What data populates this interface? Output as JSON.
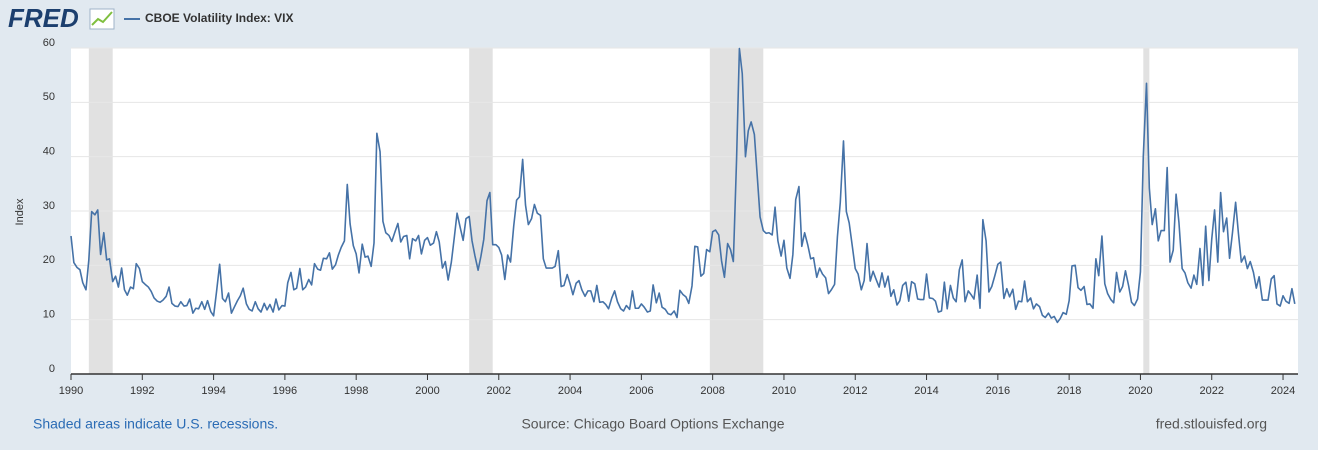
{
  "chart_data": {
    "type": "line",
    "logo": "FRED",
    "ylabel": "Index",
    "note": "Shaded areas indicate U.S. recessions.",
    "source": "Source: Chicago Board Options Exchange",
    "site": "fred.stlouisfed.org",
    "xlim": [
      1990,
      2024.42
    ],
    "xticks": [
      1990,
      1992,
      1994,
      1996,
      1998,
      2000,
      2002,
      2004,
      2006,
      2008,
      2010,
      2012,
      2014,
      2016,
      2018,
      2020,
      2022,
      2024
    ],
    "ylim": [
      0,
      60
    ],
    "yticks": [
      0,
      10,
      20,
      30,
      40,
      50,
      60
    ],
    "grid": true,
    "recession_color": "#e1e1e1",
    "recessions": [
      [
        1990.5,
        1991.17
      ],
      [
        2001.17,
        2001.83
      ],
      [
        2007.92,
        2009.42
      ],
      [
        2020.08,
        2020.25
      ]
    ],
    "x": [
      1990,
      1990.08,
      1990.17,
      1990.25,
      1990.33,
      1990.42,
      1990.5,
      1990.58,
      1990.67,
      1990.75,
      1990.83,
      1990.92,
      1991,
      1991.08,
      1991.17,
      1991.25,
      1991.33,
      1991.42,
      1991.5,
      1991.58,
      1991.67,
      1991.75,
      1991.83,
      1991.92,
      1992,
      1992.08,
      1992.17,
      1992.25,
      1992.33,
      1992.42,
      1992.5,
      1992.58,
      1992.67,
      1992.75,
      1992.83,
      1992.92,
      1993,
      1993.08,
      1993.17,
      1993.25,
      1993.33,
      1993.42,
      1993.5,
      1993.58,
      1993.67,
      1993.75,
      1993.83,
      1993.92,
      1994,
      1994.08,
      1994.17,
      1994.25,
      1994.33,
      1994.42,
      1994.5,
      1994.58,
      1994.67,
      1994.75,
      1994.83,
      1994.92,
      1995,
      1995.08,
      1995.17,
      1995.25,
      1995.33,
      1995.42,
      1995.5,
      1995.58,
      1995.67,
      1995.75,
      1995.83,
      1995.92,
      1996,
      1996.08,
      1996.17,
      1996.25,
      1996.33,
      1996.42,
      1996.5,
      1996.58,
      1996.67,
      1996.75,
      1996.83,
      1996.92,
      1997,
      1997.08,
      1997.17,
      1997.25,
      1997.33,
      1997.42,
      1997.5,
      1997.58,
      1997.67,
      1997.75,
      1997.83,
      1997.92,
      1998,
      1998.08,
      1998.17,
      1998.25,
      1998.33,
      1998.42,
      1998.5,
      1998.58,
      1998.67,
      1998.75,
      1998.83,
      1998.92,
      1999,
      1999.08,
      1999.17,
      1999.25,
      1999.33,
      1999.42,
      1999.5,
      1999.58,
      1999.67,
      1999.75,
      1999.83,
      1999.92,
      2000,
      2000.08,
      2000.17,
      2000.25,
      2000.33,
      2000.42,
      2000.5,
      2000.58,
      2000.67,
      2000.75,
      2000.83,
      2000.92,
      2001,
      2001.08,
      2001.17,
      2001.25,
      2001.33,
      2001.42,
      2001.5,
      2001.58,
      2001.67,
      2001.75,
      2001.83,
      2001.92,
      2002,
      2002.08,
      2002.17,
      2002.25,
      2002.33,
      2002.42,
      2002.5,
      2002.58,
      2002.67,
      2002.75,
      2002.83,
      2002.92,
      2003,
      2003.08,
      2003.17,
      2003.25,
      2003.33,
      2003.42,
      2003.5,
      2003.58,
      2003.67,
      2003.75,
      2003.83,
      2003.92,
      2004,
      2004.08,
      2004.17,
      2004.25,
      2004.33,
      2004.42,
      2004.5,
      2004.58,
      2004.67,
      2004.75,
      2004.83,
      2004.92,
      2005,
      2005.08,
      2005.17,
      2005.25,
      2005.33,
      2005.42,
      2005.5,
      2005.58,
      2005.67,
      2005.75,
      2005.83,
      2005.92,
      2006,
      2006.08,
      2006.17,
      2006.25,
      2006.33,
      2006.42,
      2006.5,
      2006.58,
      2006.67,
      2006.75,
      2006.83,
      2006.92,
      2007,
      2007.08,
      2007.17,
      2007.25,
      2007.33,
      2007.42,
      2007.5,
      2007.58,
      2007.67,
      2007.75,
      2007.83,
      2007.92,
      2008,
      2008.08,
      2008.17,
      2008.25,
      2008.33,
      2008.42,
      2008.5,
      2008.58,
      2008.67,
      2008.75,
      2008.83,
      2008.92,
      2009,
      2009.08,
      2009.17,
      2009.25,
      2009.33,
      2009.42,
      2009.5,
      2009.58,
      2009.67,
      2009.75,
      2009.83,
      2009.92,
      2010,
      2010.08,
      2010.17,
      2010.25,
      2010.33,
      2010.42,
      2010.5,
      2010.58,
      2010.67,
      2010.75,
      2010.83,
      2010.92,
      2011,
      2011.08,
      2011.17,
      2011.25,
      2011.33,
      2011.42,
      2011.5,
      2011.58,
      2011.67,
      2011.75,
      2011.83,
      2011.92,
      2012,
      2012.08,
      2012.17,
      2012.25,
      2012.33,
      2012.42,
      2012.5,
      2012.58,
      2012.67,
      2012.75,
      2012.83,
      2012.92,
      2013,
      2013.08,
      2013.17,
      2013.25,
      2013.33,
      2013.42,
      2013.5,
      2013.58,
      2013.67,
      2013.75,
      2013.83,
      2013.92,
      2014,
      2014.08,
      2014.17,
      2014.25,
      2014.33,
      2014.42,
      2014.5,
      2014.58,
      2014.67,
      2014.75,
      2014.83,
      2014.92,
      2015,
      2015.08,
      2015.17,
      2015.25,
      2015.33,
      2015.42,
      2015.5,
      2015.58,
      2015.67,
      2015.75,
      2015.83,
      2015.92,
      2016,
      2016.08,
      2016.17,
      2016.25,
      2016.33,
      2016.42,
      2016.5,
      2016.58,
      2016.67,
      2016.75,
      2016.83,
      2016.92,
      2017,
      2017.08,
      2017.17,
      2017.25,
      2017.33,
      2017.42,
      2017.5,
      2017.58,
      2017.67,
      2017.75,
      2017.83,
      2017.92,
      2018,
      2018.08,
      2018.17,
      2018.25,
      2018.33,
      2018.42,
      2018.5,
      2018.58,
      2018.67,
      2018.75,
      2018.83,
      2018.92,
      2019,
      2019.08,
      2019.17,
      2019.25,
      2019.33,
      2019.42,
      2019.5,
      2019.58,
      2019.67,
      2019.75,
      2019.83,
      2019.92,
      2020,
      2020.08,
      2020.17,
      2020.25,
      2020.33,
      2020.42,
      2020.5,
      2020.58,
      2020.67,
      2020.75,
      2020.83,
      2020.92,
      2021,
      2021.08,
      2021.17,
      2021.25,
      2021.33,
      2021.42,
      2021.5,
      2021.58,
      2021.67,
      2021.75,
      2021.83,
      2021.92,
      2022,
      2022.08,
      2022.17,
      2022.25,
      2022.33,
      2022.42,
      2022.5,
      2022.58,
      2022.67,
      2022.75,
      2022.83,
      2022.92,
      2023,
      2023.08,
      2023.17,
      2023.25,
      2023.33,
      2023.42,
      2023.5,
      2023.58,
      2023.67,
      2023.75,
      2023.83,
      2023.92,
      2024,
      2024.08,
      2024.17,
      2024.25,
      2024.33
    ],
    "series": [
      {
        "name": "CBOE Volatility Index: VIX",
        "color": "#4572a7",
        "values": [
          25.4,
          20.5,
          19.6,
          19.2,
          16.8,
          15.5,
          21,
          29.9,
          29.3,
          30.2,
          22,
          26,
          21,
          21.2,
          17,
          18,
          16,
          19.5,
          15.5,
          14.5,
          16,
          15.7,
          20.3,
          19.4,
          17,
          16.5,
          16,
          15.2,
          14,
          13.4,
          13.2,
          13.6,
          14.3,
          16,
          13,
          12.5,
          12.4,
          13.3,
          12.5,
          12.6,
          13.8,
          11.2,
          12.1,
          12,
          13.3,
          11.9,
          13.5,
          11.5,
          10.7,
          15,
          20.2,
          13.9,
          13.3,
          14.9,
          11.2,
          12.3,
          13.5,
          14.4,
          15.8,
          12.9,
          11.9,
          11.6,
          13.3,
          12,
          11.4,
          13,
          11.8,
          12.8,
          11.4,
          13.8,
          11.8,
          12.6,
          12.5,
          16.8,
          18.7,
          15.5,
          15.8,
          19.4,
          15.5,
          16,
          17.4,
          16.4,
          20.3,
          19.3,
          19.1,
          21.3,
          21.2,
          22.3,
          19.3,
          20.1,
          21.9,
          23.3,
          24.5,
          34.9,
          27.6,
          23.6,
          22.1,
          18.6,
          23.9,
          21.5,
          21.7,
          19.8,
          24.1,
          44.3,
          40.9,
          28.1,
          26,
          25.5,
          24.4,
          26,
          27.7,
          24.3,
          25.3,
          25.5,
          21.2,
          24.9,
          24.5,
          25.5,
          22.1,
          24.6,
          25.1,
          23.7,
          24.1,
          26.2,
          24.3,
          19.5,
          20.7,
          17.3,
          20.6,
          25,
          29.6,
          26.9,
          24.6,
          28.6,
          29,
          24.5,
          21.8,
          19.1,
          21.7,
          24.8,
          31.9,
          33.4,
          23.8,
          23.8,
          23.3,
          21.9,
          17.4,
          21.9,
          20.6,
          27.3,
          32,
          32.6,
          39.5,
          31.1,
          27.5,
          28.6,
          31.2,
          29.6,
          29.2,
          21.2,
          19.5,
          19.5,
          19.5,
          19.8,
          22.7,
          16.1,
          16.3,
          18.3,
          16.6,
          14.6,
          16.7,
          17.2,
          15.5,
          14.3,
          15.3,
          15.3,
          13.3,
          16.3,
          13.2,
          13.3,
          12.8,
          12,
          14,
          15.3,
          13.3,
          12,
          11.6,
          12.6,
          11.9,
          15.3,
          12.1,
          12.1,
          12.9,
          12.3,
          11.4,
          11.6,
          16.4,
          13.1,
          14.9,
          12.3,
          11.9,
          11.1,
          10.9,
          11.6,
          10.4,
          15.4,
          14.6,
          14.2,
          13,
          16.2,
          23.5,
          23.4,
          18,
          18.5,
          22.9,
          22.5,
          26.2,
          26.5,
          25.6,
          20.8,
          17.8,
          24,
          22.9,
          20.7,
          39.4,
          59.9,
          55.3,
          40,
          44.8,
          46.4,
          44.1,
          36.5,
          28.9,
          26.4,
          25.9,
          26,
          25.6,
          30.7,
          24.5,
          21.7,
          24.6,
          19.5,
          17.6,
          22,
          32.1,
          34.5,
          23.5,
          26,
          23.7,
          21.2,
          21.4,
          17.8,
          19.5,
          18.4,
          17.7,
          14.8,
          15.5,
          16.5,
          25.3,
          31.6,
          42.9,
          29.9,
          27.8,
          23.4,
          19.4,
          18.4,
          15.5,
          17.2,
          24,
          17.1,
          18.9,
          17.5,
          16,
          18.6,
          16,
          18,
          14.3,
          15.5,
          12.7,
          13.5,
          16.3,
          16.9,
          13.4,
          17,
          16.6,
          13.8,
          13.7,
          13.7,
          18.4,
          14,
          13.9,
          13.4,
          11.4,
          11.6,
          16.9,
          12,
          16.3,
          14,
          13.3,
          19.2,
          21,
          13.3,
          15.3,
          14.6,
          13.8,
          18.2,
          12.1,
          28.4,
          24.5,
          15.1,
          16.1,
          18.2,
          20.2,
          20.6,
          13.9,
          15.7,
          14.2,
          15.6,
          11.9,
          13.4,
          13.3,
          17.1,
          13.3,
          14,
          12,
          12.9,
          12.4,
          10.8,
          10.4,
          11.2,
          10.3,
          10.6,
          9.5,
          10.2,
          11.3,
          11,
          13.5,
          19.9,
          20,
          15.9,
          15.4,
          16.1,
          12.8,
          12.9,
          12.1,
          21.2,
          18.1,
          25.4,
          16.6,
          14.8,
          13.7,
          13.1,
          18.7,
          15.1,
          16.1,
          19,
          16.2,
          13.2,
          12.6,
          13.8,
          18.8,
          40.1,
          53.5,
          34.2,
          27.5,
          30.4,
          24.5,
          26.4,
          26.4,
          38,
          20.6,
          22.8,
          33.1,
          27.9,
          19.4,
          18.6,
          16.8,
          15.8,
          18.2,
          16.5,
          23.1,
          16.3,
          27.2,
          17.2,
          24.8,
          30.2,
          20.6,
          33.4,
          26.2,
          28.7,
          21.3,
          25.9,
          31.6,
          25.8,
          20.6,
          21.7,
          19.4,
          20.7,
          18.7,
          15.8,
          17.9,
          13.6,
          13.6,
          13.6,
          17.5,
          18.1,
          12.9,
          12.5,
          14.4,
          13.4,
          13,
          15.7,
          12.9
        ]
      }
    ]
  }
}
